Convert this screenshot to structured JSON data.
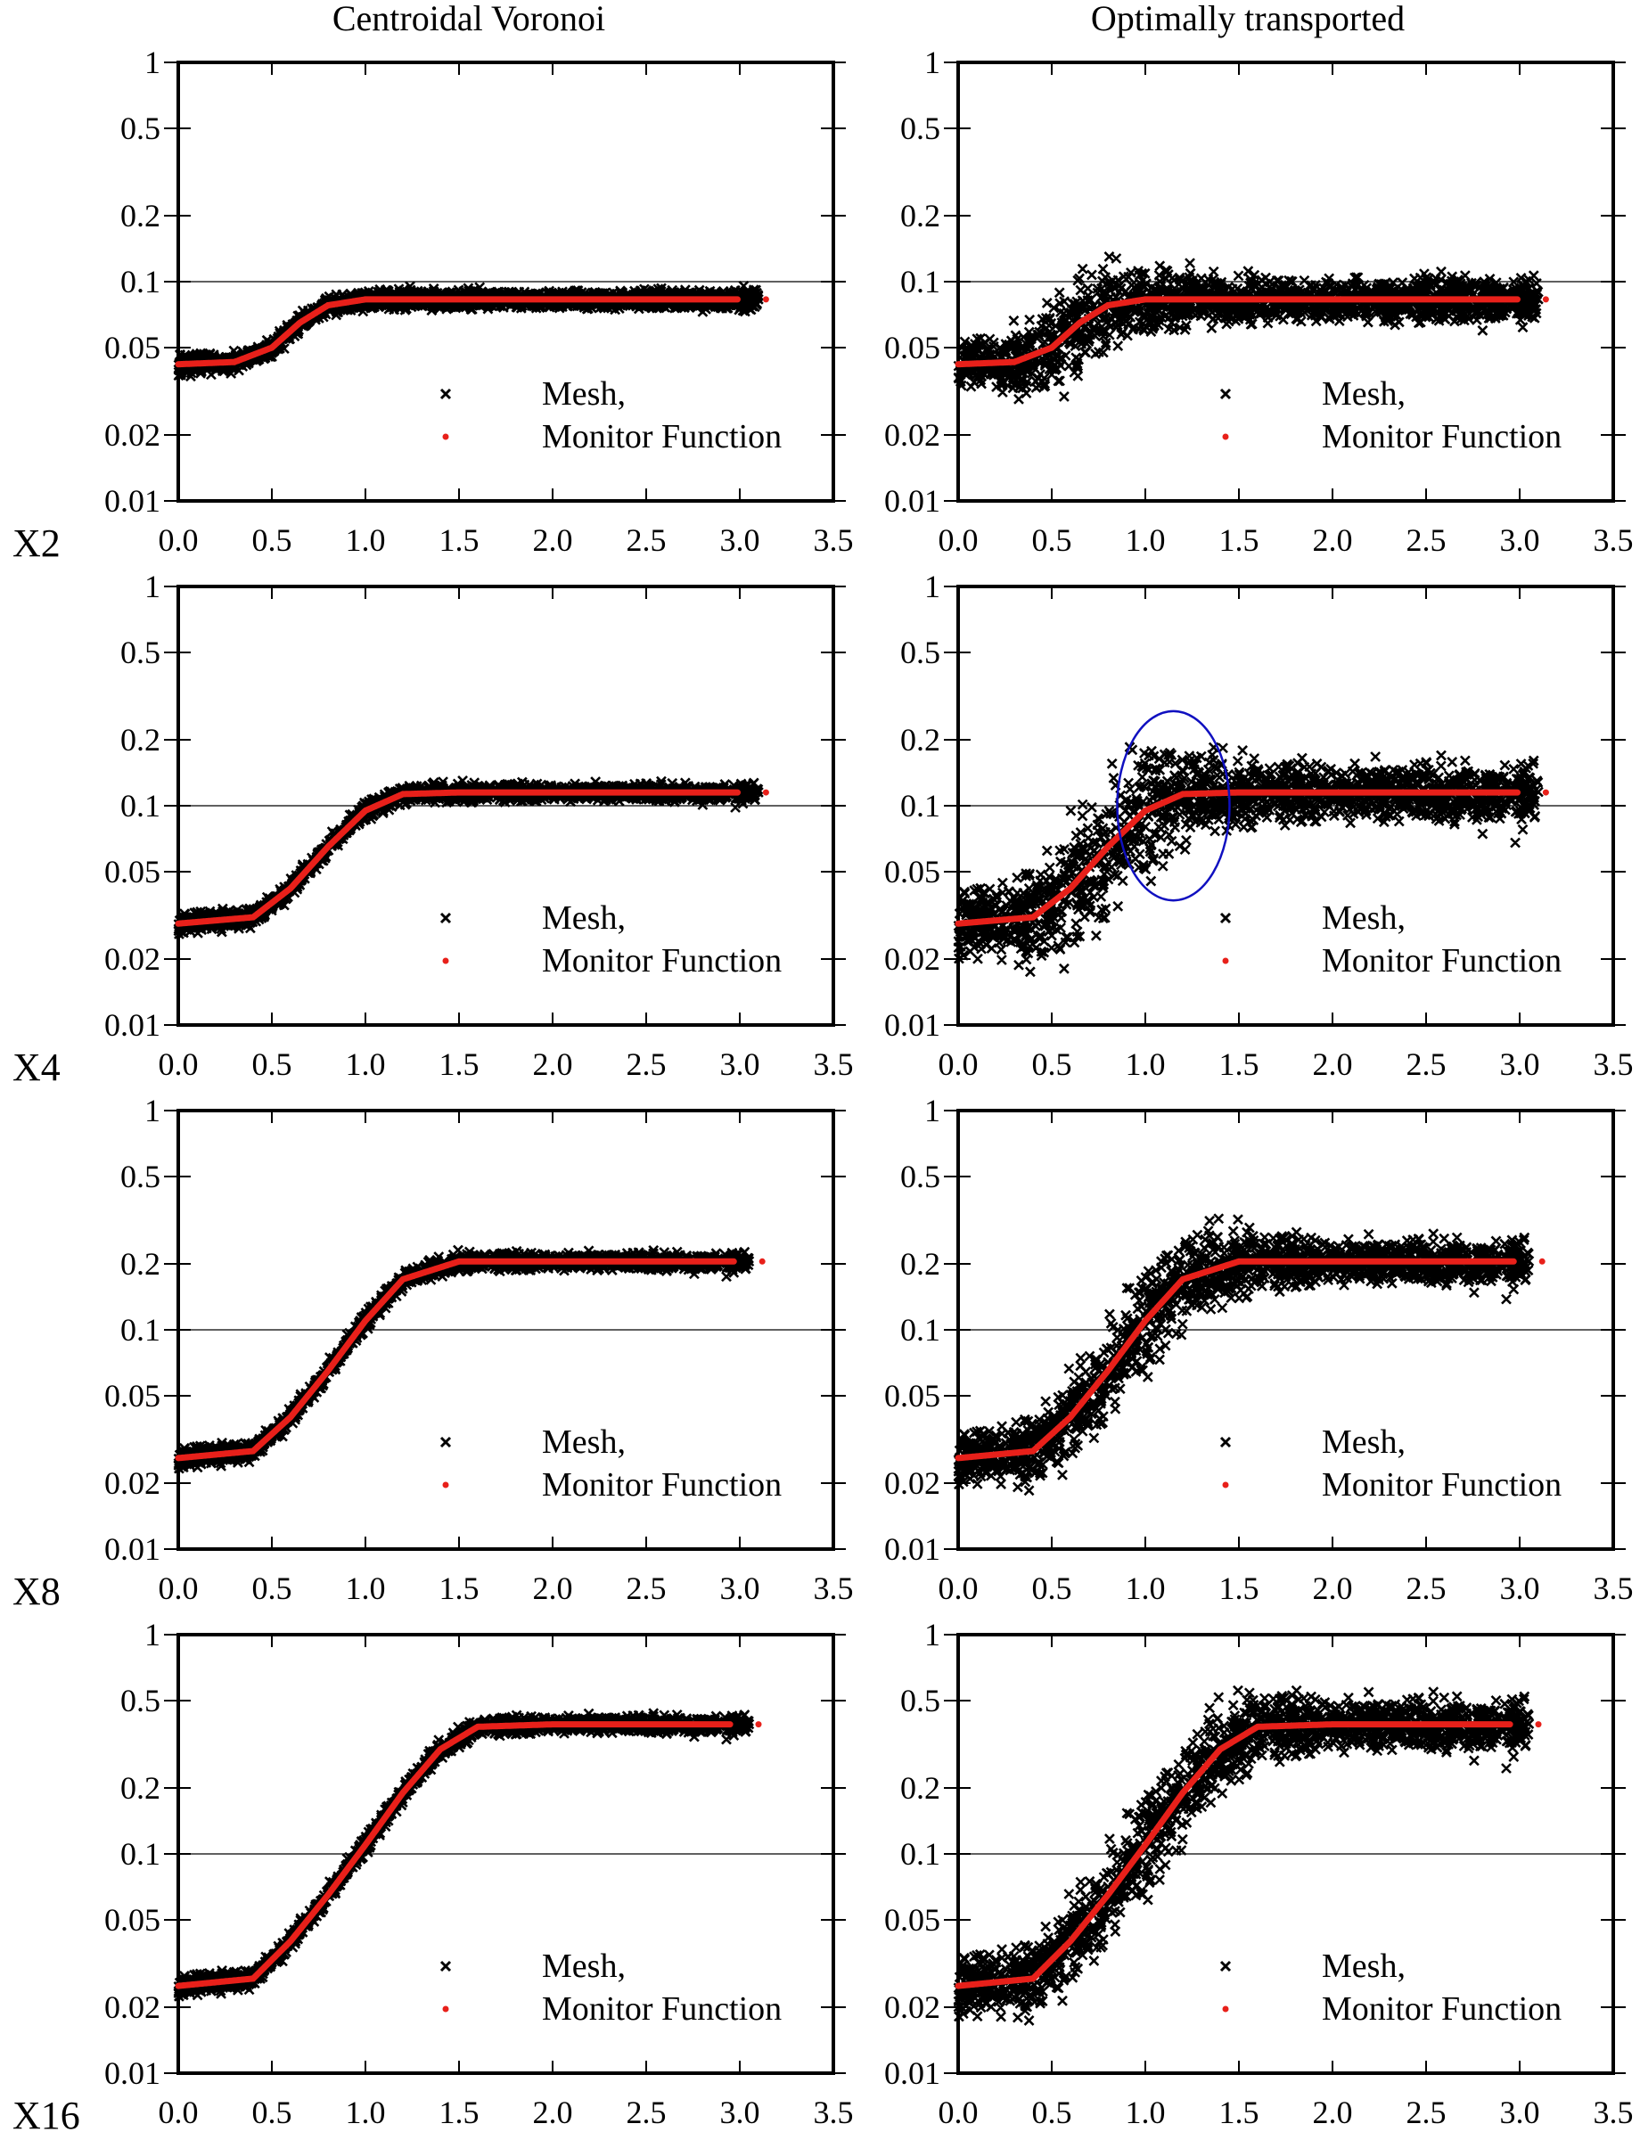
{
  "figure": {
    "column_titles": [
      "Centroidal Voronoi",
      "Optimally transported"
    ],
    "row_labels": [
      "X2",
      "X4",
      "X8",
      "X16"
    ],
    "legend": {
      "mesh_label": "Mesh,",
      "monitor_label": "Monitor Function"
    },
    "colors": {
      "mesh": "#000000",
      "monitor": "#e8201a",
      "annotation": "#1010c0",
      "axis": "#000000",
      "reference_line": "#000000"
    }
  },
  "chart_data": [
    {
      "type": "scatter",
      "row": 0,
      "col": 0,
      "xlim": [
        0,
        3.5
      ],
      "ylim": [
        0.01,
        1
      ],
      "yscale": "log",
      "xticks": [
        "0.0",
        "0.5",
        "1.0",
        "1.5",
        "2.0",
        "2.5",
        "3.0",
        "3.5"
      ],
      "yticks": [
        {
          "v": 1,
          "label": "1"
        },
        {
          "v": 0.5,
          "label": "0.5"
        },
        {
          "v": 0.2,
          "label": "0.2"
        },
        {
          "v": 0.1,
          "label": "0.1"
        },
        {
          "v": 0.05,
          "label": "0.05"
        },
        {
          "v": 0.02,
          "label": "0.02"
        },
        {
          "v": 0.01,
          "label": "0.01"
        }
      ],
      "reference_line_y": 0.1,
      "legend_placement": "bottom-right",
      "series": [
        {
          "name": "Mesh,",
          "marker": "x",
          "monitor_min": 0.042,
          "monitor_max": 0.083,
          "transition_x": [
            0.3,
            1.0
          ],
          "x_max": 3.1,
          "spread_below": 0.12,
          "spread_above": 0.12,
          "overshoot": 0.0
        },
        {
          "name": "Monitor Function",
          "marker": "dot",
          "x": [
            0.0,
            0.3,
            0.5,
            0.65,
            0.8,
            1.0,
            1.5,
            2.0,
            2.5,
            3.14
          ],
          "y": [
            0.042,
            0.043,
            0.05,
            0.065,
            0.078,
            0.083,
            0.083,
            0.083,
            0.083,
            0.083
          ]
        }
      ]
    },
    {
      "type": "scatter",
      "row": 0,
      "col": 1,
      "xlim": [
        0,
        3.5
      ],
      "ylim": [
        0.01,
        1
      ],
      "yscale": "log",
      "xticks": [
        "0.0",
        "0.5",
        "1.0",
        "1.5",
        "2.0",
        "2.5",
        "3.0",
        "3.5"
      ],
      "yticks": [
        {
          "v": 1,
          "label": "1"
        },
        {
          "v": 0.5,
          "label": "0.5"
        },
        {
          "v": 0.2,
          "label": "0.2"
        },
        {
          "v": 0.1,
          "label": "0.1"
        },
        {
          "v": 0.05,
          "label": "0.05"
        },
        {
          "v": 0.02,
          "label": "0.02"
        },
        {
          "v": 0.01,
          "label": "0.01"
        }
      ],
      "reference_line_y": 0.1,
      "legend_placement": "bottom-right",
      "series": [
        {
          "name": "Mesh,",
          "marker": "x",
          "monitor_min": 0.042,
          "monitor_max": 0.083,
          "transition_x": [
            0.3,
            1.0
          ],
          "x_max": 3.1,
          "spread_below": 0.3,
          "spread_above": 0.35,
          "overshoot": 0.3
        },
        {
          "name": "Monitor Function",
          "marker": "dot",
          "x": [
            0.0,
            0.3,
            0.5,
            0.65,
            0.8,
            1.0,
            1.5,
            2.0,
            2.5,
            3.14
          ],
          "y": [
            0.042,
            0.043,
            0.05,
            0.065,
            0.078,
            0.083,
            0.083,
            0.083,
            0.083,
            0.083
          ]
        }
      ]
    },
    {
      "type": "scatter",
      "row": 1,
      "col": 0,
      "xlim": [
        0,
        3.5
      ],
      "ylim": [
        0.01,
        1
      ],
      "yscale": "log",
      "xticks": [
        "0.0",
        "0.5",
        "1.0",
        "1.5",
        "2.0",
        "2.5",
        "3.0",
        "3.5"
      ],
      "yticks": [
        {
          "v": 1,
          "label": "1"
        },
        {
          "v": 0.5,
          "label": "0.5"
        },
        {
          "v": 0.2,
          "label": "0.2"
        },
        {
          "v": 0.1,
          "label": "0.1"
        },
        {
          "v": 0.05,
          "label": "0.05"
        },
        {
          "v": 0.02,
          "label": "0.02"
        },
        {
          "v": 0.01,
          "label": "0.01"
        }
      ],
      "reference_line_y": 0.1,
      "legend_placement": "bottom-right",
      "series": [
        {
          "name": "Mesh,",
          "marker": "x",
          "monitor_min": 0.029,
          "monitor_max": 0.115,
          "transition_x": [
            0.4,
            1.2
          ],
          "x_max": 3.1,
          "spread_below": 0.12,
          "spread_above": 0.12,
          "overshoot": 0.0
        },
        {
          "name": "Monitor Function",
          "marker": "dot",
          "x": [
            0.0,
            0.4,
            0.6,
            0.8,
            1.0,
            1.2,
            1.5,
            2.0,
            2.5,
            3.14
          ],
          "y": [
            0.029,
            0.031,
            0.042,
            0.065,
            0.095,
            0.113,
            0.115,
            0.115,
            0.115,
            0.115
          ]
        }
      ]
    },
    {
      "type": "scatter",
      "row": 1,
      "col": 1,
      "xlim": [
        0,
        3.5
      ],
      "ylim": [
        0.01,
        1
      ],
      "yscale": "log",
      "xticks": [
        "0.0",
        "0.5",
        "1.0",
        "1.5",
        "2.0",
        "2.5",
        "3.0",
        "3.5"
      ],
      "yticks": [
        {
          "v": 1,
          "label": "1"
        },
        {
          "v": 0.5,
          "label": "0.5"
        },
        {
          "v": 0.2,
          "label": "0.2"
        },
        {
          "v": 0.1,
          "label": "0.1"
        },
        {
          "v": 0.05,
          "label": "0.05"
        },
        {
          "v": 0.02,
          "label": "0.02"
        },
        {
          "v": 0.01,
          "label": "0.01"
        }
      ],
      "reference_line_y": 0.1,
      "legend_placement": "bottom-right",
      "annotation": {
        "shape": "ellipse",
        "center": [
          1.15,
          0.1
        ],
        "x_radius": 0.3,
        "y_top": 0.27,
        "y_bottom": 0.037
      },
      "series": [
        {
          "name": "Mesh,",
          "marker": "x",
          "monitor_min": 0.029,
          "monitor_max": 0.115,
          "transition_x": [
            0.4,
            1.2
          ],
          "x_max": 3.1,
          "spread_below": 0.4,
          "spread_above": 0.4,
          "overshoot": 0.45
        },
        {
          "name": "Monitor Function",
          "marker": "dot",
          "x": [
            0.0,
            0.4,
            0.6,
            0.8,
            1.0,
            1.2,
            1.5,
            2.0,
            2.5,
            3.14
          ],
          "y": [
            0.029,
            0.031,
            0.042,
            0.065,
            0.095,
            0.113,
            0.115,
            0.115,
            0.115,
            0.115
          ]
        }
      ]
    },
    {
      "type": "scatter",
      "row": 2,
      "col": 0,
      "xlim": [
        0,
        3.5
      ],
      "ylim": [
        0.01,
        1
      ],
      "yscale": "log",
      "xticks": [
        "0.0",
        "0.5",
        "1.0",
        "1.5",
        "2.0",
        "2.5",
        "3.0",
        "3.5"
      ],
      "yticks": [
        {
          "v": 1,
          "label": "1"
        },
        {
          "v": 0.5,
          "label": "0.5"
        },
        {
          "v": 0.2,
          "label": "0.2"
        },
        {
          "v": 0.1,
          "label": "0.1"
        },
        {
          "v": 0.05,
          "label": "0.05"
        },
        {
          "v": 0.02,
          "label": "0.02"
        },
        {
          "v": 0.01,
          "label": "0.01"
        }
      ],
      "reference_line_y": 0.1,
      "legend_placement": "bottom-right",
      "series": [
        {
          "name": "Mesh,",
          "marker": "x",
          "monitor_min": 0.026,
          "monitor_max": 0.205,
          "transition_x": [
            0.4,
            1.5
          ],
          "x_max": 3.05,
          "spread_below": 0.12,
          "spread_above": 0.12,
          "overshoot": 0.0
        },
        {
          "name": "Monitor Function",
          "marker": "dot",
          "x": [
            0.0,
            0.4,
            0.6,
            0.8,
            1.0,
            1.2,
            1.5,
            2.0,
            2.5,
            3.12
          ],
          "y": [
            0.026,
            0.028,
            0.04,
            0.065,
            0.11,
            0.17,
            0.205,
            0.205,
            0.205,
            0.205
          ]
        }
      ]
    },
    {
      "type": "scatter",
      "row": 2,
      "col": 1,
      "xlim": [
        0,
        3.5
      ],
      "ylim": [
        0.01,
        1
      ],
      "yscale": "log",
      "xticks": [
        "0.0",
        "0.5",
        "1.0",
        "1.5",
        "2.0",
        "2.5",
        "3.0",
        "3.5"
      ],
      "yticks": [
        {
          "v": 1,
          "label": "1"
        },
        {
          "v": 0.5,
          "label": "0.5"
        },
        {
          "v": 0.2,
          "label": "0.2"
        },
        {
          "v": 0.1,
          "label": "0.1"
        },
        {
          "v": 0.05,
          "label": "0.05"
        },
        {
          "v": 0.02,
          "label": "0.02"
        },
        {
          "v": 0.01,
          "label": "0.01"
        }
      ],
      "reference_line_y": 0.1,
      "legend_placement": "bottom-right",
      "series": [
        {
          "name": "Mesh,",
          "marker": "x",
          "monitor_min": 0.026,
          "monitor_max": 0.205,
          "transition_x": [
            0.4,
            1.5
          ],
          "x_max": 3.05,
          "spread_below": 0.3,
          "spread_above": 0.3,
          "overshoot": 0.3
        },
        {
          "name": "Monitor Function",
          "marker": "dot",
          "x": [
            0.0,
            0.4,
            0.6,
            0.8,
            1.0,
            1.2,
            1.5,
            2.0,
            2.5,
            3.12
          ],
          "y": [
            0.026,
            0.028,
            0.04,
            0.065,
            0.11,
            0.17,
            0.205,
            0.205,
            0.205,
            0.205
          ]
        }
      ]
    },
    {
      "type": "scatter",
      "row": 3,
      "col": 0,
      "xlim": [
        0,
        3.5
      ],
      "ylim": [
        0.01,
        1
      ],
      "yscale": "log",
      "xticks": [
        "0.0",
        "0.5",
        "1.0",
        "1.5",
        "2.0",
        "2.5",
        "3.0",
        "3.5"
      ],
      "yticks": [
        {
          "v": 1,
          "label": "1"
        },
        {
          "v": 0.5,
          "label": "0.5"
        },
        {
          "v": 0.2,
          "label": "0.2"
        },
        {
          "v": 0.1,
          "label": "0.1"
        },
        {
          "v": 0.05,
          "label": "0.05"
        },
        {
          "v": 0.02,
          "label": "0.02"
        },
        {
          "v": 0.01,
          "label": "0.01"
        }
      ],
      "reference_line_y": 0.1,
      "legend_placement": "bottom-right",
      "series": [
        {
          "name": "Mesh,",
          "marker": "x",
          "monitor_min": 0.025,
          "monitor_max": 0.39,
          "transition_x": [
            0.4,
            1.6
          ],
          "x_max": 3.05,
          "spread_below": 0.12,
          "spread_above": 0.12,
          "overshoot": 0.0
        },
        {
          "name": "Monitor Function",
          "marker": "dot",
          "x": [
            0.0,
            0.4,
            0.6,
            0.8,
            1.0,
            1.2,
            1.4,
            1.6,
            2.0,
            2.5,
            3.1
          ],
          "y": [
            0.025,
            0.027,
            0.04,
            0.065,
            0.11,
            0.19,
            0.3,
            0.38,
            0.39,
            0.39,
            0.39
          ]
        }
      ]
    },
    {
      "type": "scatter",
      "row": 3,
      "col": 1,
      "xlim": [
        0,
        3.5
      ],
      "ylim": [
        0.01,
        1
      ],
      "yscale": "log",
      "xticks": [
        "0.0",
        "0.5",
        "1.0",
        "1.5",
        "2.0",
        "2.5",
        "3.0",
        "3.5"
      ],
      "yticks": [
        {
          "v": 1,
          "label": "1"
        },
        {
          "v": 0.5,
          "label": "0.5"
        },
        {
          "v": 0.2,
          "label": "0.2"
        },
        {
          "v": 0.1,
          "label": "0.1"
        },
        {
          "v": 0.05,
          "label": "0.05"
        },
        {
          "v": 0.02,
          "label": "0.02"
        },
        {
          "v": 0.01,
          "label": "0.01"
        }
      ],
      "reference_line_y": 0.1,
      "legend_placement": "bottom-right",
      "series": [
        {
          "name": "Mesh,",
          "marker": "x",
          "monitor_min": 0.025,
          "monitor_max": 0.39,
          "transition_x": [
            0.4,
            1.6
          ],
          "x_max": 3.05,
          "spread_below": 0.35,
          "spread_above": 0.3,
          "overshoot": 0.25
        },
        {
          "name": "Monitor Function",
          "marker": "dot",
          "x": [
            0.0,
            0.4,
            0.6,
            0.8,
            1.0,
            1.2,
            1.4,
            1.6,
            2.0,
            2.5,
            3.1
          ],
          "y": [
            0.025,
            0.027,
            0.04,
            0.065,
            0.11,
            0.19,
            0.3,
            0.38,
            0.39,
            0.39,
            0.39
          ]
        }
      ]
    }
  ]
}
